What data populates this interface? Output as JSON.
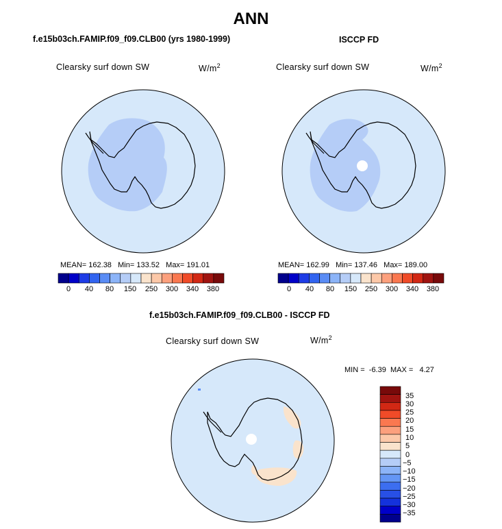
{
  "main_title": "ANN",
  "colors": {
    "ocean": "#d6e8fa",
    "inner_region": "#b5cdf7",
    "positive_diff": "#fae3cc",
    "coast": "#000000"
  },
  "palette_abs": [
    "#00008c",
    "#0000c8",
    "#1e3ce6",
    "#3264f0",
    "#5a8cf5",
    "#8cb4f8",
    "#b5cdf7",
    "#d6e8fa",
    "#fae3cc",
    "#fcc8a8",
    "#fca07d",
    "#fa7850",
    "#f04b28",
    "#d22814",
    "#a01410",
    "#780a0a"
  ],
  "palette_diff": [
    "#00008c",
    "#0000c8",
    "#1432dc",
    "#2850e6",
    "#3c6ef0",
    "#6496f5",
    "#8cb4f8",
    "#b5cdf7",
    "#d6e8fa",
    "#fae3cc",
    "#fcc8a8",
    "#fca07d",
    "#fa7850",
    "#f04b28",
    "#d22814",
    "#a01410",
    "#780a0a"
  ],
  "panels": [
    {
      "title": "f.e15b03ch.FAMIP.f09_f09.CLB00 (yrs 1980-1999)",
      "variable": "Clearsky surf down SW",
      "units": "W/m",
      "units_exp": "2",
      "mean_label": "MEAN=",
      "mean": "162.38",
      "min_label": "Min=",
      "min": "133.52",
      "max_label": "Max=",
      "max": "191.01",
      "colorbar_ticks": [
        "0",
        "40",
        "80",
        "150",
        "250",
        "300",
        "340",
        "380"
      ]
    },
    {
      "title": "ISCCP FD",
      "variable": "Clearsky surf down SW",
      "units": "W/m",
      "units_exp": "2",
      "mean_label": "MEAN=",
      "mean": "162.99",
      "min_label": "Min=",
      "min": "137.46",
      "max_label": "Max=",
      "max": "189.00",
      "colorbar_ticks": [
        "0",
        "40",
        "80",
        "150",
        "250",
        "300",
        "340",
        "380"
      ]
    }
  ],
  "diff_panel": {
    "title": "f.e15b03ch.FAMIP.f09_f09.CLB00 - ISCCP FD",
    "variable": "Clearsky surf down SW",
    "units": "W/m",
    "units_exp": "2",
    "min_label": "MIN =",
    "min": "-6.39",
    "max_label": "MAX =",
    "max": "4.27",
    "colorbar_labels": [
      "35",
      "30",
      "25",
      "20",
      "15",
      "10",
      "5",
      "0",
      "−5",
      "−10",
      "−15",
      "−20",
      "−25",
      "−30",
      "−35"
    ]
  }
}
